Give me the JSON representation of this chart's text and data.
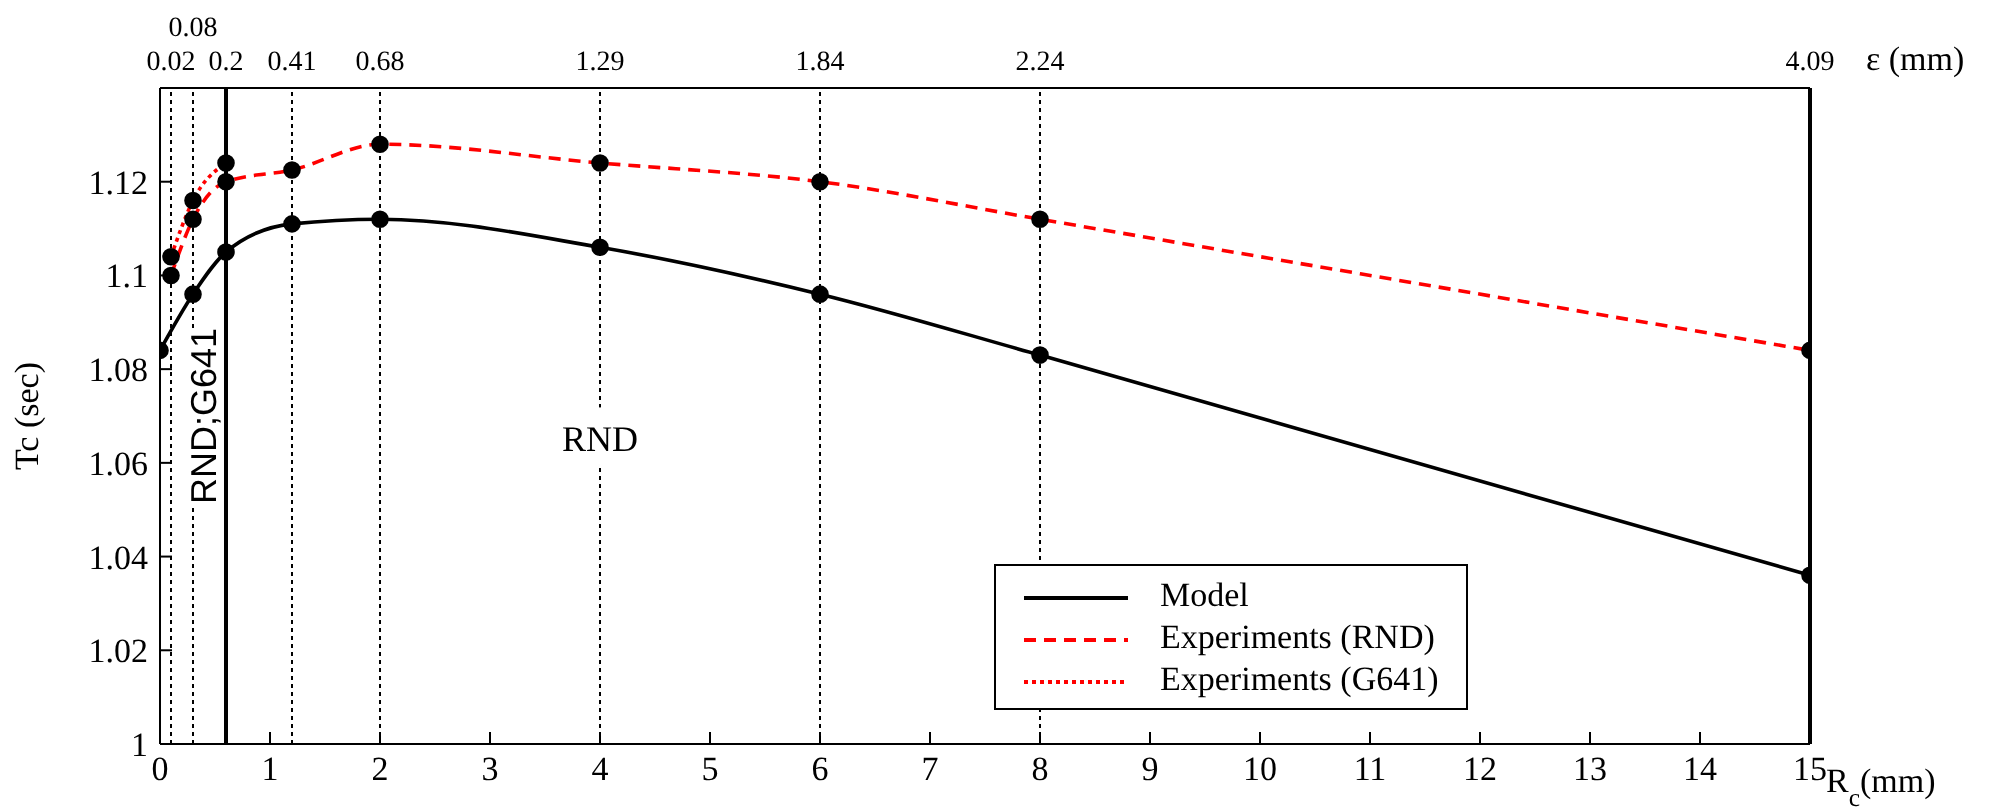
{
  "chart_data": {
    "type": "line",
    "xlabel": "R$_{c}$(mm)",
    "ylabel": "Tc (sec)",
    "xlim": [
      0,
      15
    ],
    "xticks": [
      0,
      1,
      2,
      3,
      4,
      5,
      6,
      7,
      8,
      9,
      10,
      11,
      12,
      13,
      14,
      15
    ],
    "ylim": [
      1,
      1.14
    ],
    "yticks": [
      1,
      1.02,
      1.04,
      1.06,
      1.08,
      1.1,
      1.12
    ],
    "grid": false,
    "legend": "bottom right",
    "marker": "circle",
    "series": [
      {
        "name": "Model",
        "color": "#000000",
        "line_style": "solid",
        "x": [
          0,
          0.3,
          0.6,
          1.2,
          2,
          4,
          6,
          8,
          15
        ],
        "values": [
          1.084,
          1.096,
          1.105,
          1.111,
          1.112,
          1.106,
          1.096,
          1.083,
          1.036
        ]
      },
      {
        "name": "Experiments (RND)",
        "color": "#ff0000",
        "line_style": "dashed",
        "x": [
          0.1,
          0.3,
          0.6,
          1.2,
          2,
          4,
          6,
          8,
          15
        ],
        "values": [
          1.1,
          1.112,
          1.12,
          1.1225,
          1.128,
          1.124,
          1.12,
          1.112,
          1.084
        ]
      },
      {
        "name": "Experiments (G641)",
        "color": "#ff0000",
        "line_style": "dotted",
        "x": [
          0.1,
          0.3,
          0.6
        ],
        "values": [
          1.104,
          1.116,
          1.124
        ]
      }
    ],
    "ref_lines": [
      {
        "axis": "x",
        "value": 0.1,
        "line_style": "dotted",
        "color": "#000000"
      },
      {
        "axis": "x",
        "value": 0.3,
        "line_style": "dotted",
        "color": "#000000"
      },
      {
        "axis": "x",
        "value": 0.6,
        "line_style": "solid",
        "color": "#000000"
      },
      {
        "axis": "x",
        "value": 1.2,
        "line_style": "dotted",
        "color": "#000000"
      },
      {
        "axis": "x",
        "value": 2,
        "line_style": "dotted",
        "color": "#000000"
      },
      {
        "axis": "x",
        "value": 4,
        "line_style": "dotted",
        "color": "#000000"
      },
      {
        "axis": "x",
        "value": 6,
        "line_style": "dotted",
        "color": "#000000"
      },
      {
        "axis": "x",
        "value": 8,
        "line_style": "dotted",
        "color": "#000000"
      },
      {
        "axis": "x",
        "value": 15,
        "line_style": "solid",
        "color": "#000000"
      }
    ],
    "annotations": [
      {
        "text": "0.02",
        "x": 0.1,
        "y": 1.14
      },
      {
        "text": "0.08",
        "x": 0.3,
        "y": 1.14
      },
      {
        "text": "0.2",
        "x": 0.6,
        "y": 1.14
      },
      {
        "text": "0.41",
        "x": 1.2,
        "y": 1.14
      },
      {
        "text": "0.68",
        "x": 2,
        "y": 1.14
      },
      {
        "text": "1.29",
        "x": 4,
        "y": 1.14
      },
      {
        "text": "1.84",
        "x": 6,
        "y": 1.14
      },
      {
        "text": "2.24",
        "x": 8,
        "y": 1.14
      },
      {
        "text": "4.09",
        "x": 15,
        "y": 1.14
      },
      "ε (mm)",
      {
        "text": "RND;G641",
        "x": 0.6,
        "y": 1.07
      },
      {
        "text": "RND",
        "x": 4,
        "y": 1.065
      }
    ]
  }
}
